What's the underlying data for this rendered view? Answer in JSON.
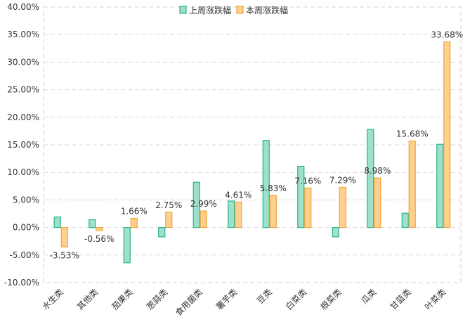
{
  "chart_data": {
    "type": "bar",
    "title": "",
    "xlabel": "",
    "ylabel": "",
    "categories": [
      "水生类",
      "其他类",
      "茄果类",
      "葱蒜类",
      "食用菌类",
      "薯芋类",
      "豆类",
      "白菜类",
      "根菜类",
      "瓜类",
      "甘蓝类",
      "叶菜类"
    ],
    "series": [
      {
        "name": "上周涨跌幅",
        "color_fill": "#9fe0cc",
        "color_stroke": "#2bb38c",
        "values": [
          1.9,
          1.4,
          -6.4,
          -1.7,
          8.2,
          4.8,
          15.8,
          11.1,
          -1.7,
          17.8,
          2.6,
          15.1
        ]
      },
      {
        "name": "本周涨跌幅",
        "color_fill": "#fdd08f",
        "color_stroke": "#f0a53a",
        "values": [
          -3.53,
          -0.56,
          1.66,
          2.75,
          2.99,
          4.61,
          5.83,
          7.16,
          7.29,
          8.98,
          15.68,
          33.68
        ]
      }
    ],
    "data_labels": [
      "-3.53%",
      "-0.56%",
      "1.66%",
      "2.75%",
      "2.99%",
      "4.61%",
      "5.83%",
      "7.16%",
      "7.29%",
      "8.98%",
      "15.68%",
      "33.68%"
    ],
    "ylim": [
      -10,
      40
    ],
    "ytick_values": [
      -10,
      -5,
      0,
      5,
      10,
      15,
      20,
      25,
      30,
      35,
      40
    ],
    "ytick_labels": [
      "-10.00%",
      "-5.00%",
      "0.00%",
      "5.00%",
      "10.00%",
      "15.00%",
      "20.00%",
      "25.00%",
      "30.00%",
      "35.00%",
      "40.00%"
    ],
    "grid": true,
    "legend_position": "top-center"
  }
}
